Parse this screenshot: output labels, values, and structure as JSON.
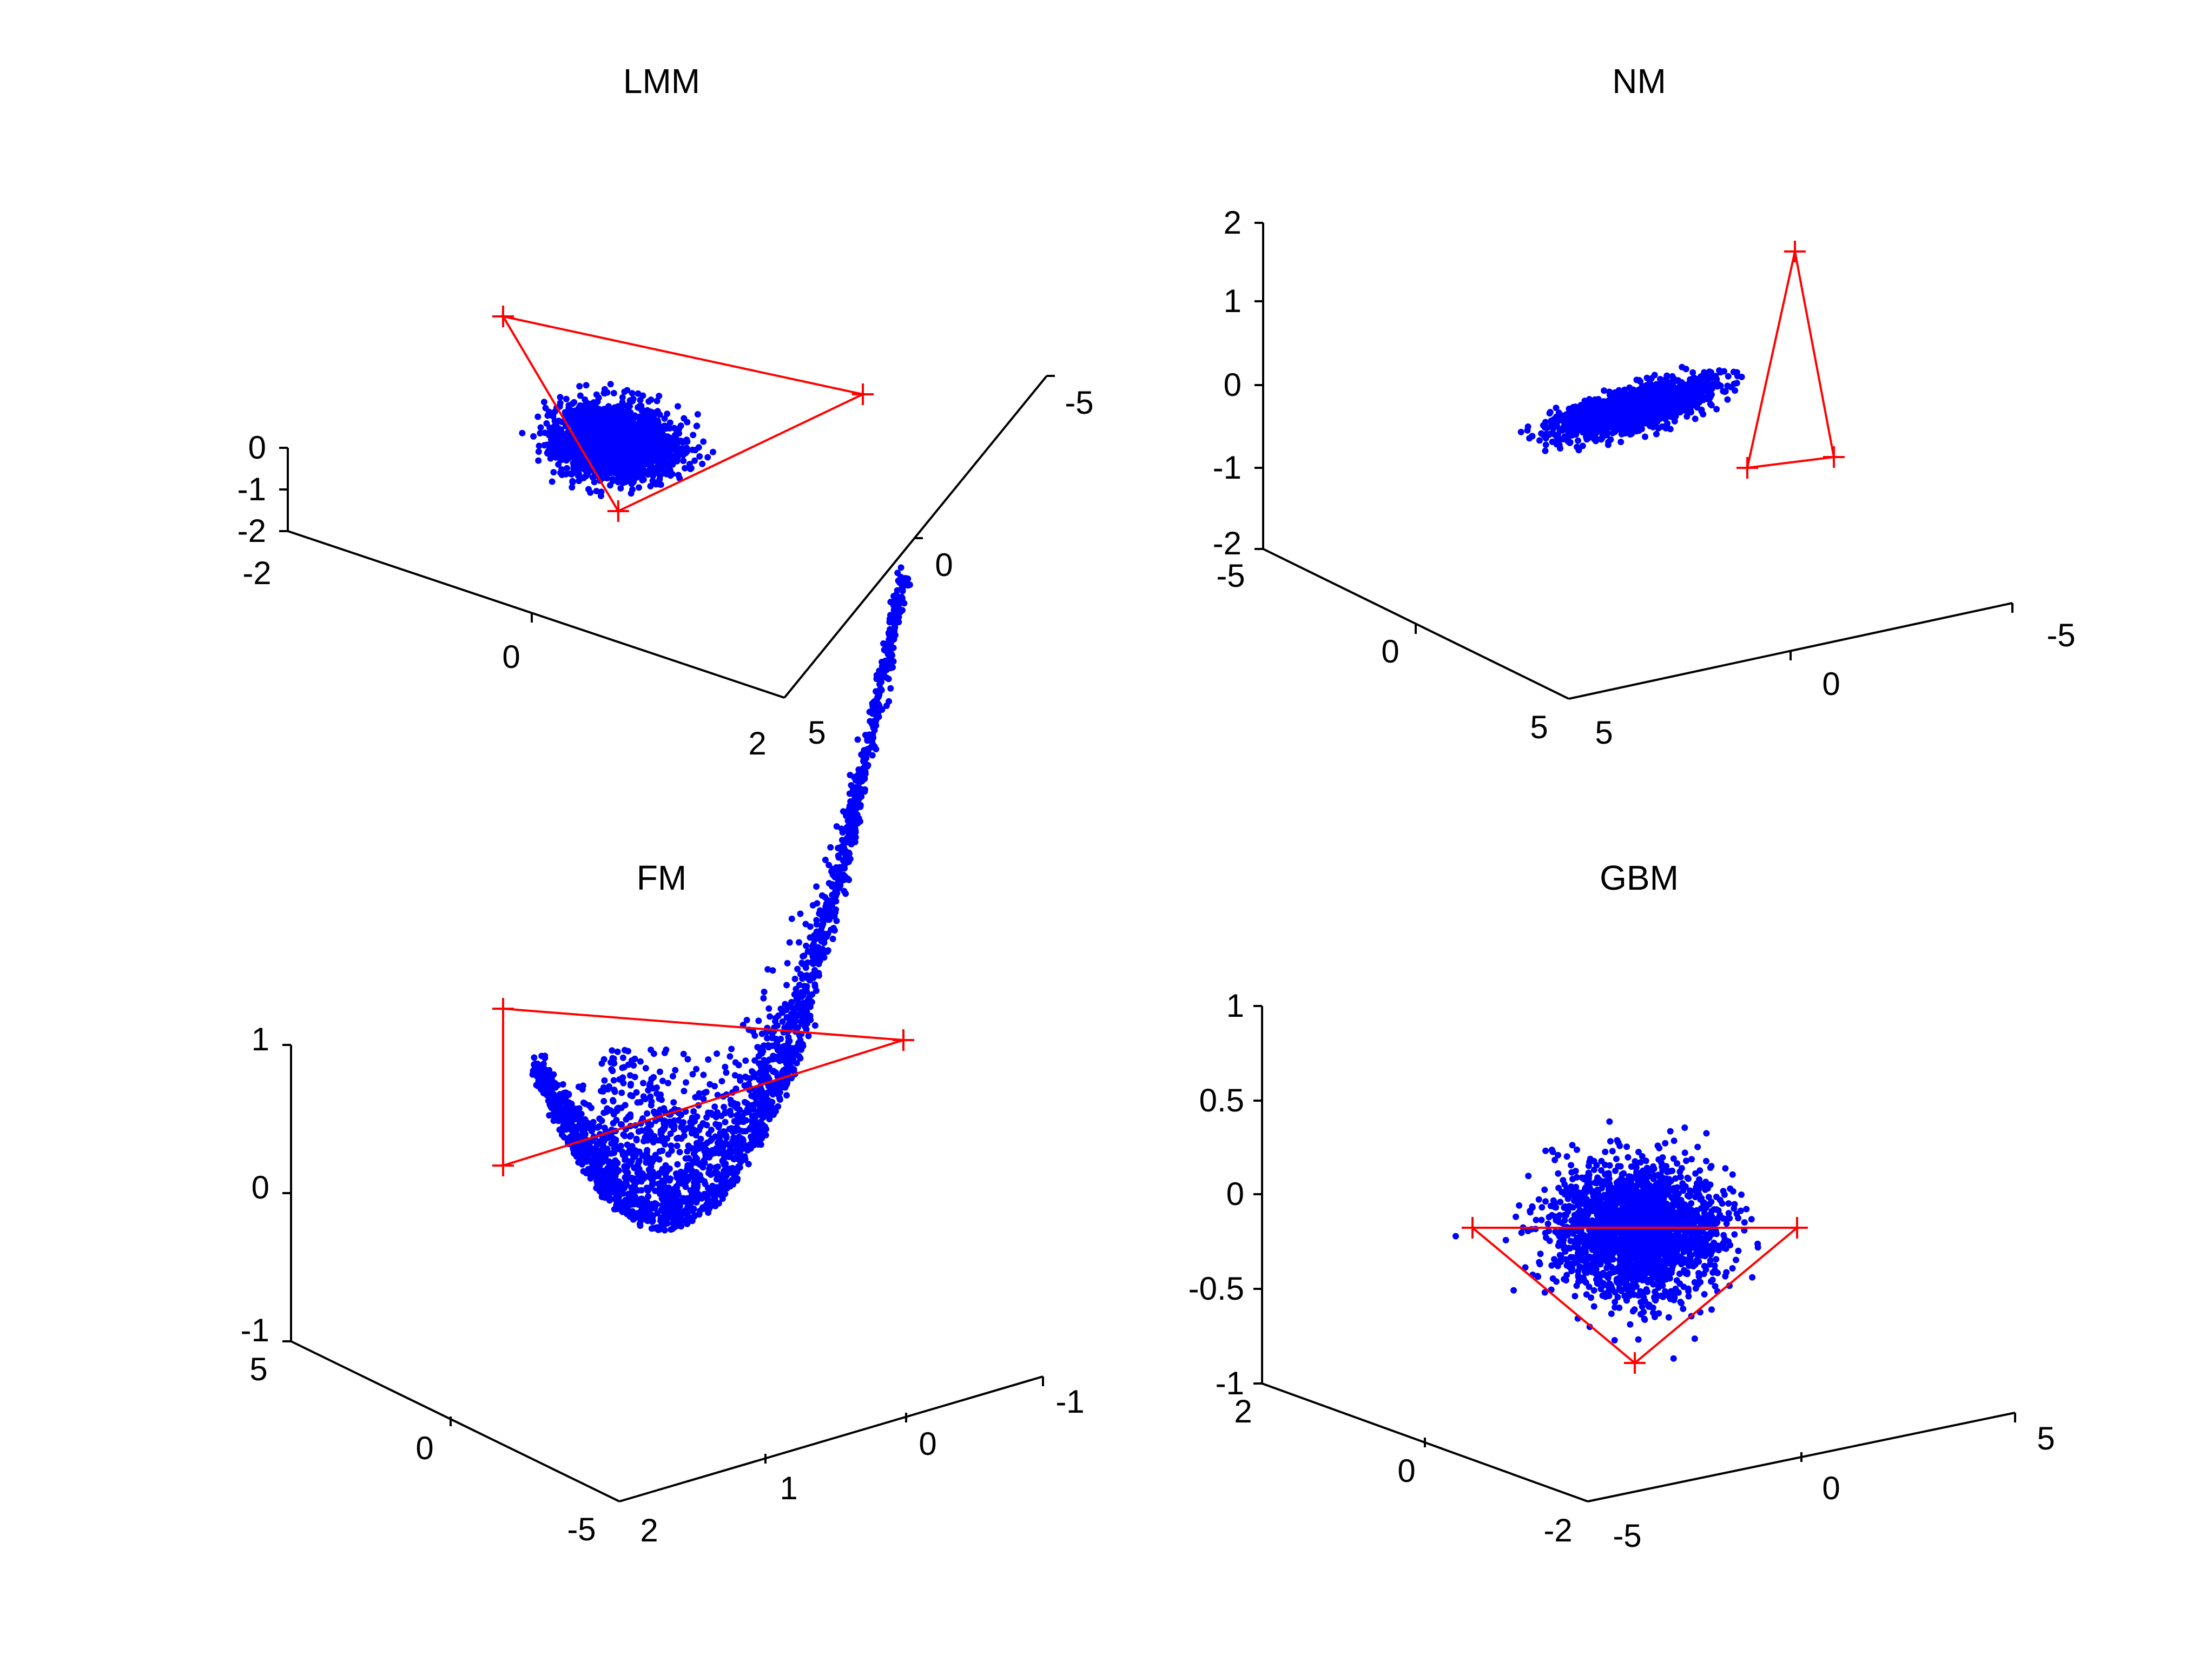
{
  "colors": {
    "points": "#0000ff",
    "endmembers": "#ff0000",
    "axes": "#000000",
    "background": "#ffffff"
  },
  "chart_data": [
    {
      "type": "scatter",
      "projection": "3d",
      "title": "LMM",
      "axes": {
        "a": {
          "ticks": [
            "-2",
            "0",
            "2"
          ]
        },
        "b": {
          "ticks": [
            "5",
            "0",
            "-5"
          ]
        },
        "z": {
          "ticks": [
            "-2",
            "-1",
            "0"
          ]
        }
      },
      "series": [
        {
          "kind": "points",
          "color": "#0000ff",
          "simplex": [
            [
              0.02,
              0.27
            ],
            [
              0.76,
              0.73
            ],
            [
              0.15,
              0.95
            ]
          ],
          "count": 2400,
          "concentration": 1.2,
          "jitter": 0.0
        },
        {
          "kind": "endmember-simplex",
          "color": "#ff0000",
          "vertices": [
            [
              0.0,
              0.0
            ],
            [
              1.0,
              0.4
            ],
            [
              0.32,
              1.0
            ]
          ]
        }
      ]
    },
    {
      "type": "scatter",
      "projection": "3d",
      "title": "NM",
      "axes": {
        "a": {
          "ticks": [
            "-5",
            "0",
            "5"
          ]
        },
        "b": {
          "ticks": [
            "5",
            "0",
            "-5"
          ]
        },
        "z": {
          "ticks": [
            "-2",
            "-1",
            "0",
            "1",
            "2"
          ]
        }
      },
      "series": [
        {
          "kind": "points",
          "color": "#0000ff",
          "blob": {
            "center": [
              0.43,
              0.55
            ],
            "spread": [
              0.24,
              0.14
            ],
            "tilt": -0.25
          },
          "count": 1800
        },
        {
          "kind": "endmember-simplex",
          "color": "#ff0000",
          "vertices": [
            [
              0.55,
              0.0
            ],
            [
              0.0,
              1.0
            ],
            [
              1.0,
              0.95
            ]
          ]
        }
      ]
    },
    {
      "type": "scatter",
      "projection": "3d",
      "title": "FM",
      "axes": {
        "a": {
          "ticks": [
            "5",
            "0",
            "-5"
          ]
        },
        "b": {
          "ticks": [
            "2",
            "1",
            "0",
            "-1"
          ]
        },
        "z": {
          "ticks": [
            "-1",
            "0",
            "1"
          ]
        }
      },
      "series": [
        {
          "kind": "points",
          "color": "#0000ff",
          "curve": true,
          "count": 2400
        },
        {
          "kind": "endmember-simplex",
          "color": "#ff0000",
          "vertices": [
            [
              0.0,
              0.0
            ],
            [
              1.0,
              0.2
            ],
            [
              0.0,
              1.0
            ]
          ]
        }
      ]
    },
    {
      "type": "scatter",
      "projection": "3d",
      "title": "GBM",
      "axes": {
        "a": {
          "ticks": [
            "-2",
            "0",
            "2"
          ]
        },
        "b": {
          "ticks": [
            "-5",
            "0",
            "5"
          ]
        },
        "z": {
          "ticks": [
            "-1",
            "-0.5",
            "0",
            "0.5",
            "1"
          ]
        }
      },
      "series": [
        {
          "kind": "points",
          "color": "#0000ff",
          "blob": {
            "center": [
              0.5,
              0.45
            ],
            "spread": [
              0.22,
              0.22
            ],
            "tilt": 0.0
          },
          "count": 2400
        },
        {
          "kind": "endmember-simplex",
          "color": "#ff0000",
          "vertices": [
            [
              0.0,
              0.0
            ],
            [
              1.0,
              0.0
            ],
            [
              0.5,
              1.0
            ]
          ]
        }
      ]
    }
  ]
}
